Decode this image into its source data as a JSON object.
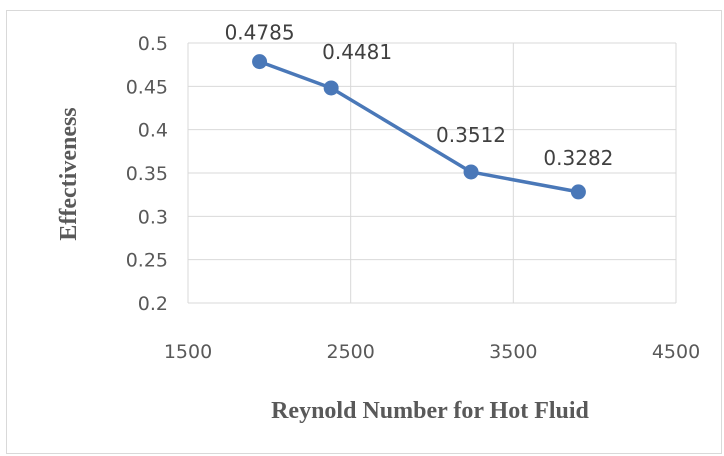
{
  "chart_data": {
    "type": "line",
    "title": "",
    "xlabel": "Reynold Number for Hot Fluid",
    "ylabel": "Effectiveness",
    "xlim": [
      1500,
      4500
    ],
    "ylim": [
      0.2,
      0.5
    ],
    "xticks": [
      1500,
      2500,
      3500,
      4500
    ],
    "yticks": [
      0.2,
      0.25,
      0.3,
      0.35,
      0.4,
      0.45,
      0.5
    ],
    "grid": true,
    "legend": "none",
    "series": [
      {
        "color": "#4a78b8",
        "x": [
          1940,
          2380,
          3240,
          3900
        ],
        "y": [
          0.4785,
          0.4481,
          0.3512,
          0.3282
        ],
        "labels": [
          "0.4785",
          "0.4481",
          "0.3512",
          "0.3282"
        ]
      }
    ]
  }
}
